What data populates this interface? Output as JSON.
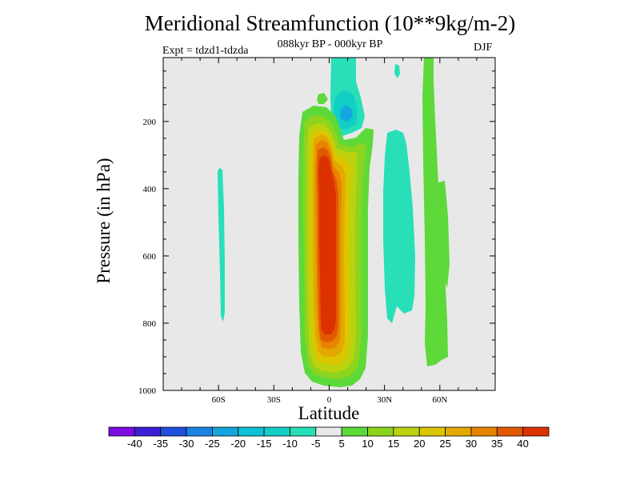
{
  "title": "Meridional Streamfunction (10**9kg/m-2)",
  "subtitle": "088kyr BP - 000kyr BP",
  "experiment": "Expt = tdzd1-tdzda",
  "season": "DJF",
  "chart_data": {
    "type": "heatmap",
    "title": "Meridional Streamfunction (10**9kg/m-2)",
    "xlabel": "Latitude",
    "ylabel": "Pressure (in hPa)",
    "xlim": [
      -90,
      90
    ],
    "ylim": [
      1000,
      10
    ],
    "x_ticks": [
      {
        "value": -60,
        "label": "60S"
      },
      {
        "value": -30,
        "label": "30S"
      },
      {
        "value": 0,
        "label": "0"
      },
      {
        "value": 30,
        "label": "30N"
      },
      {
        "value": 60,
        "label": "60N"
      }
    ],
    "y_ticks": [
      {
        "value": 200,
        "label": "200"
      },
      {
        "value": 400,
        "label": "400"
      },
      {
        "value": 600,
        "label": "600"
      },
      {
        "value": 800,
        "label": "800"
      },
      {
        "value": 1000,
        "label": "1000"
      }
    ],
    "colorbar": {
      "levels": [
        "-40",
        "-35",
        "-30",
        "-25",
        "-20",
        "-15",
        "-10",
        "-5",
        "5",
        "10",
        "15",
        "20",
        "25",
        "30",
        "35",
        "40"
      ],
      "colors": [
        "#7c0ce0",
        "#3a1fd8",
        "#1f4fdc",
        "#1b82e4",
        "#14a6de",
        "#0fc0d6",
        "#12cfc6",
        "#28dfb8",
        "#e8e8e8",
        "#5ed93a",
        "#8dd41e",
        "#bcd20f",
        "#dcc600",
        "#e4a800",
        "#e88400",
        "#e25a00",
        "#dc3200"
      ]
    },
    "features": [
      {
        "name": "Tropical positive cell",
        "lat_range": [
          -10,
          8
        ],
        "pressure_range": [
          180,
          990
        ],
        "peak_value": 40
      },
      {
        "name": "Upper-level negative cell",
        "lat_range": [
          2,
          12
        ],
        "pressure_range": [
          20,
          240
        ],
        "peak_value": -15
      },
      {
        "name": "Southern midlatitude negative band",
        "lat_range": [
          -60,
          -57
        ],
        "pressure_range": [
          330,
          790
        ],
        "value": -10
      },
      {
        "name": "Northern subtropical negative band",
        "lat_range": [
          27,
          43
        ],
        "pressure_range": [
          220,
          800
        ],
        "value": -10
      },
      {
        "name": "Northern midlatitude positive band",
        "lat_range": [
          50,
          65
        ],
        "pressure_range": [
          10,
          930
        ],
        "value": 5
      }
    ]
  }
}
